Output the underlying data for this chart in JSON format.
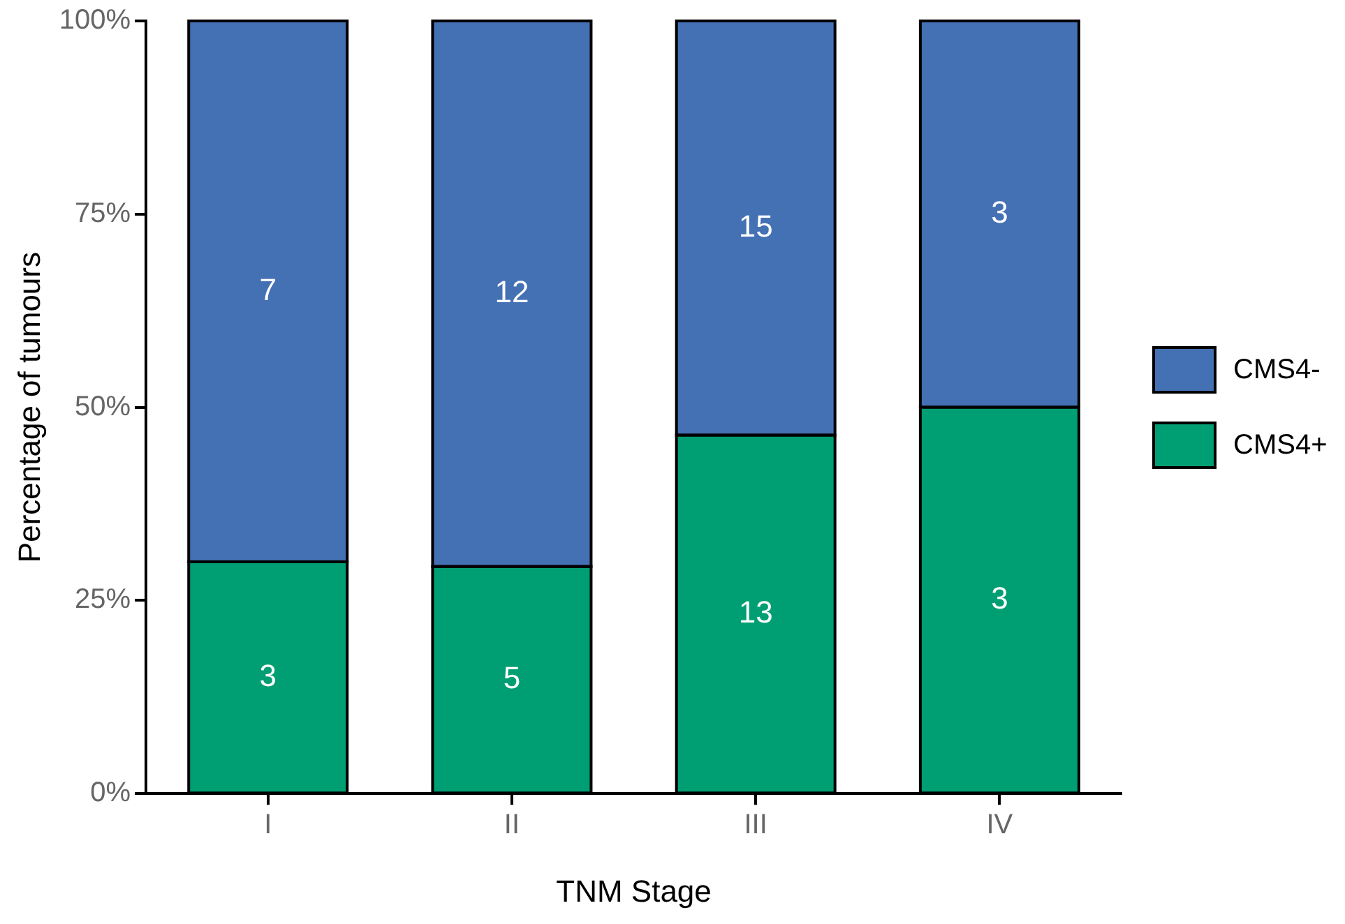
{
  "chart_data": {
    "type": "bar",
    "stacked": true,
    "xlabel": "TNM Stage",
    "ylabel": "Percentage of tumours",
    "categories": [
      "I",
      "II",
      "III",
      "IV"
    ],
    "series": [
      {
        "name": "CMS4+",
        "color": "#009e73",
        "values": [
          30,
          29.4,
          46.4,
          50
        ]
      },
      {
        "name": "CMS4-",
        "color": "#4470b4",
        "values": [
          70,
          70.6,
          53.6,
          50
        ]
      }
    ],
    "ylim": [
      0,
      100
    ],
    "yticks": [
      {
        "value": 0,
        "label": "0%"
      },
      {
        "value": 25,
        "label": "25%"
      },
      {
        "value": 50,
        "label": "50%"
      },
      {
        "value": 75,
        "label": "75%"
      },
      {
        "value": 100,
        "label": "100%"
      }
    ],
    "annotations": [
      "3",
      "5",
      "13",
      "3",
      "7",
      "12",
      "15",
      "3"
    ],
    "grid": false,
    "legend": "right"
  }
}
